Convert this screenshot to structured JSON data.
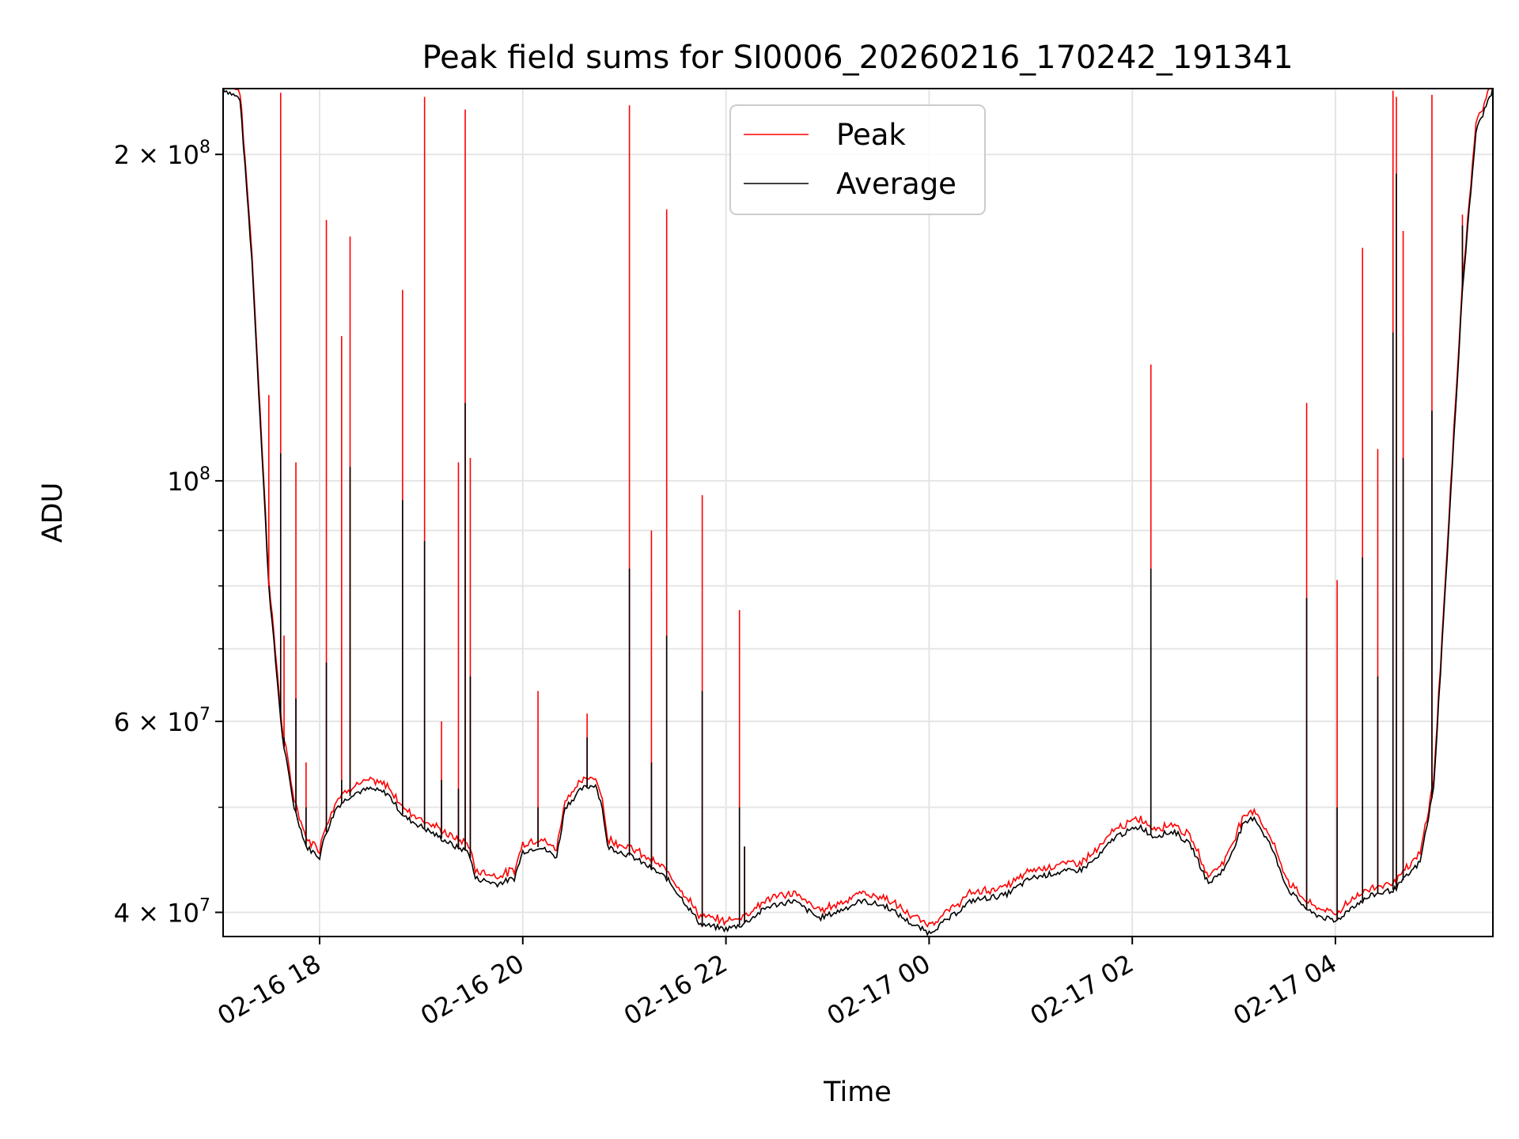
{
  "chart_data": {
    "type": "line",
    "title": "Peak field sums for SI0006_20260216_170242_191341",
    "xlabel": "Time",
    "ylabel": "ADU",
    "y_scale": "log",
    "xlim": [
      "2026-02-16 17:03",
      "2026-02-17 05:33"
    ],
    "ylim": [
      38000000,
      230000000
    ],
    "grid": true,
    "legend_position": "top-center",
    "x_ticks": [
      "02-16 18",
      "02-16 20",
      "02-16 22",
      "02-17 00",
      "02-17 02",
      "02-17 04"
    ],
    "y_ticks": [
      {
        "value": 200000000,
        "mantissa": "2",
        "exponent": "8"
      },
      {
        "value": 100000000,
        "mantissa": "",
        "exponent": "8"
      },
      {
        "value": 60000000,
        "mantissa": "6",
        "exponent": "7"
      },
      {
        "value": 40000000,
        "mantissa": "4",
        "exponent": "7"
      }
    ],
    "series": [
      {
        "name": "Peak",
        "color": "#ff0000"
      },
      {
        "name": "Average",
        "color": "#000000"
      }
    ],
    "baseline_points": [
      [
        "2026-02-16 17:03",
        230000000
      ],
      [
        "2026-02-16 17:13",
        225000000
      ],
      [
        "2026-02-16 17:20",
        160000000
      ],
      [
        "2026-02-16 17:30",
        80000000
      ],
      [
        "2026-02-16 17:38",
        58000000
      ],
      [
        "2026-02-16 17:45",
        50000000
      ],
      [
        "2026-02-16 17:52",
        46000000
      ],
      [
        "2026-02-16 18:00",
        45000000
      ],
      [
        "2026-02-16 18:03",
        47000000
      ],
      [
        "2026-02-16 18:10",
        50000000
      ],
      [
        "2026-02-16 18:20",
        51500000
      ],
      [
        "2026-02-16 18:30",
        52000000
      ],
      [
        "2026-02-16 18:40",
        51500000
      ],
      [
        "2026-02-16 18:50",
        49000000
      ],
      [
        "2026-02-16 19:00",
        48000000
      ],
      [
        "2026-02-16 19:10",
        47000000
      ],
      [
        "2026-02-16 19:20",
        46000000
      ],
      [
        "2026-02-16 19:28",
        45500000
      ],
      [
        "2026-02-16 19:32",
        43000000
      ],
      [
        "2026-02-16 19:45",
        42500000
      ],
      [
        "2026-02-16 19:55",
        43000000
      ],
      [
        "2026-02-16 20:00",
        45500000
      ],
      [
        "2026-02-16 20:10",
        46000000
      ],
      [
        "2026-02-16 20:20",
        45000000
      ],
      [
        "2026-02-16 20:25",
        50000000
      ],
      [
        "2026-02-16 20:35",
        52000000
      ],
      [
        "2026-02-16 20:43",
        52500000
      ],
      [
        "2026-02-16 20:47",
        50000000
      ],
      [
        "2026-02-16 20:50",
        46000000
      ],
      [
        "2026-02-16 21:05",
        45000000
      ],
      [
        "2026-02-16 21:15",
        44000000
      ],
      [
        "2026-02-16 21:25",
        43000000
      ],
      [
        "2026-02-16 21:35",
        41000000
      ],
      [
        "2026-02-16 21:45",
        39000000
      ],
      [
        "2026-02-16 22:00",
        38600000
      ],
      [
        "2026-02-16 22:10",
        39000000
      ],
      [
        "2026-02-16 22:25",
        40500000
      ],
      [
        "2026-02-16 22:40",
        41000000
      ],
      [
        "2026-02-16 22:55",
        39500000
      ],
      [
        "2026-02-16 23:05",
        40000000
      ],
      [
        "2026-02-16 23:20",
        41000000
      ],
      [
        "2026-02-16 23:35",
        40500000
      ],
      [
        "2026-02-16 23:50",
        39000000
      ],
      [
        "2026-02-17 00:00",
        38300000
      ],
      [
        "2026-02-17 00:12",
        39500000
      ],
      [
        "2026-02-17 00:25",
        41000000
      ],
      [
        "2026-02-17 00:45",
        41500000
      ],
      [
        "2026-02-17 01:00",
        43000000
      ],
      [
        "2026-02-17 01:15",
        43500000
      ],
      [
        "2026-02-17 01:30",
        43800000
      ],
      [
        "2026-02-17 01:40",
        45000000
      ],
      [
        "2026-02-17 01:50",
        47000000
      ],
      [
        "2026-02-17 02:05",
        48000000
      ],
      [
        "2026-02-17 02:12",
        47000000
      ],
      [
        "2026-02-17 02:25",
        47500000
      ],
      [
        "2026-02-17 02:35",
        46000000
      ],
      [
        "2026-02-17 02:45",
        42500000
      ],
      [
        "2026-02-17 02:55",
        44000000
      ],
      [
        "2026-02-17 03:05",
        48000000
      ],
      [
        "2026-02-17 03:12",
        49000000
      ],
      [
        "2026-02-17 03:22",
        46000000
      ],
      [
        "2026-02-17 03:32",
        42000000
      ],
      [
        "2026-02-17 03:45",
        40000000
      ],
      [
        "2026-02-17 04:00",
        39200000
      ],
      [
        "2026-02-17 04:10",
        40500000
      ],
      [
        "2026-02-17 04:22",
        41500000
      ],
      [
        "2026-02-17 04:35",
        42000000
      ],
      [
        "2026-02-17 04:50",
        44500000
      ],
      [
        "2026-02-17 04:58",
        52000000
      ],
      [
        "2026-02-17 05:05",
        80000000
      ],
      [
        "2026-02-17 05:15",
        150000000
      ],
      [
        "2026-02-17 05:23",
        210000000
      ],
      [
        "2026-02-17 05:33",
        230000000
      ]
    ],
    "spikes": [
      {
        "time": "2026-02-16 17:30",
        "peak": 120000000,
        "average": 80000000
      },
      {
        "time": "2026-02-16 17:37",
        "peak": 228000000,
        "average": 106000000
      },
      {
        "time": "2026-02-16 17:39",
        "peak": 72000000,
        "average": 58000000
      },
      {
        "time": "2026-02-16 17:46",
        "peak": 104000000,
        "average": 63000000
      },
      {
        "time": "2026-02-16 17:52",
        "peak": 55000000,
        "average": 50000000
      },
      {
        "time": "2026-02-16 18:04",
        "peak": 174000000,
        "average": 68000000
      },
      {
        "time": "2026-02-16 18:13",
        "peak": 136000000,
        "average": 53000000
      },
      {
        "time": "2026-02-16 18:18",
        "peak": 168000000,
        "average": 103000000
      },
      {
        "time": "2026-02-16 18:49",
        "peak": 150000000,
        "average": 96000000
      },
      {
        "time": "2026-02-16 19:02",
        "peak": 226000000,
        "average": 88000000
      },
      {
        "time": "2026-02-16 19:12",
        "peak": 60000000,
        "average": 53000000
      },
      {
        "time": "2026-02-16 19:22",
        "peak": 104000000,
        "average": 52000000
      },
      {
        "time": "2026-02-16 19:26",
        "peak": 220000000,
        "average": 118000000
      },
      {
        "time": "2026-02-16 19:29",
        "peak": 105000000,
        "average": 66000000
      },
      {
        "time": "2026-02-16 20:09",
        "peak": 64000000,
        "average": 50000000
      },
      {
        "time": "2026-02-16 20:38",
        "peak": 61000000,
        "average": 58000000
      },
      {
        "time": "2026-02-16 21:03",
        "peak": 222000000,
        "average": 83000000
      },
      {
        "time": "2026-02-16 21:16",
        "peak": 90000000,
        "average": 55000000
      },
      {
        "time": "2026-02-16 21:25",
        "peak": 178000000,
        "average": 72000000
      },
      {
        "time": "2026-02-16 21:46",
        "peak": 97000000,
        "average": 64000000
      },
      {
        "time": "2026-02-16 22:08",
        "peak": 76000000,
        "average": 50000000
      },
      {
        "time": "2026-02-16 22:11",
        "peak": 46000000,
        "average": 46000000
      },
      {
        "time": "2026-02-17 02:11",
        "peak": 128000000,
        "average": 83000000
      },
      {
        "time": "2026-02-17 03:43",
        "peak": 118000000,
        "average": 78000000
      },
      {
        "time": "2026-02-17 04:01",
        "peak": 81000000,
        "average": 50000000
      },
      {
        "time": "2026-02-17 04:16",
        "peak": 164000000,
        "average": 85000000
      },
      {
        "time": "2026-02-17 04:25",
        "peak": 107000000,
        "average": 66000000
      },
      {
        "time": "2026-02-17 04:34",
        "peak": 229000000,
        "average": 137000000
      },
      {
        "time": "2026-02-17 04:36",
        "peak": 226000000,
        "average": 192000000
      },
      {
        "time": "2026-02-17 04:40",
        "peak": 170000000,
        "average": 105000000
      },
      {
        "time": "2026-02-17 04:57",
        "peak": 227000000,
        "average": 116000000
      },
      {
        "time": "2026-02-17 05:15",
        "peak": 176000000,
        "average": 172000000
      }
    ]
  }
}
